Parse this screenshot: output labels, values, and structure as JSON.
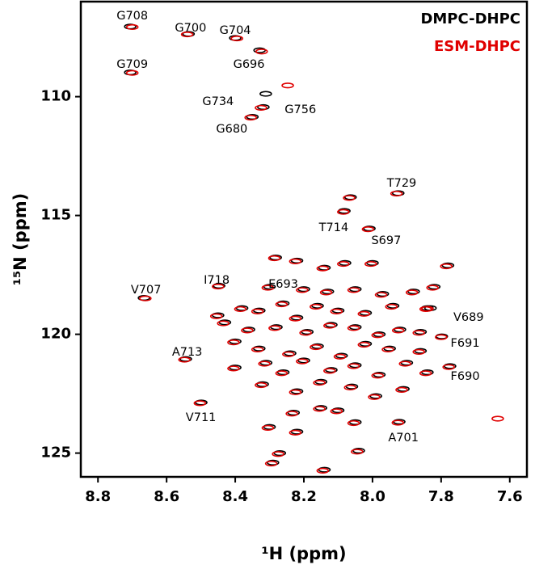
{
  "chart_data": {
    "type": "scatter",
    "xlabel": "¹H (ppm)",
    "ylabel": "¹⁵N (ppm)",
    "xlim": [
      8.85,
      7.55
    ],
    "ylim": [
      106,
      126
    ],
    "xticks": [
      8.8,
      8.6,
      8.4,
      8.2,
      {
        "value": 8,
        "label": "8.0"
      },
      7.8,
      7.6
    ],
    "yticks": [
      110,
      115,
      120,
      125
    ],
    "legend": "upper right",
    "series": [
      {
        "name": "DMPC-DHPC",
        "color": "#000000",
        "x": [
          8.706,
          8.536,
          8.4,
          8.329,
          8.706,
          8.311,
          8.318,
          8.35,
          7.925,
          8.064,
          8.082,
          8.009,
          8.666,
          8.447,
          8.282,
          8.544,
          8.499,
          7.922,
          7.774,
          7.798,
          7.831,
          8.22,
          8.14,
          8.08,
          8.0,
          7.78,
          8.3,
          8.2,
          8.13,
          8.05,
          7.97,
          7.88,
          7.82,
          8.45,
          8.38,
          8.33,
          8.26,
          8.22,
          8.16,
          8.1,
          8.02,
          7.94,
          7.84,
          8.43,
          8.36,
          8.28,
          8.19,
          8.12,
          8.05,
          7.98,
          7.92,
          7.86,
          8.4,
          8.33,
          8.24,
          8.16,
          8.09,
          8.02,
          7.95,
          7.86,
          8.4,
          8.31,
          8.26,
          8.2,
          8.12,
          8.05,
          7.98,
          7.9,
          7.84,
          8.32,
          8.22,
          8.15,
          8.06,
          7.99,
          7.91,
          8.23,
          8.15,
          8.05,
          8.1,
          8.3,
          8.22,
          8.04,
          8.27,
          8.29,
          8.14
        ],
        "values": [
          107.05,
          107.36,
          107.53,
          108.05,
          108.98,
          109.88,
          110.44,
          110.85,
          114.06,
          114.23,
          114.81,
          115.55,
          118.47,
          117.96,
          116.77,
          121.04,
          122.87,
          123.68,
          121.34,
          120.09,
          118.9,
          116.9,
          117.2,
          117.0,
          117.0,
          117.1,
          118.0,
          118.1,
          118.2,
          118.1,
          118.3,
          118.2,
          118.0,
          119.2,
          118.9,
          119.0,
          118.7,
          119.3,
          118.8,
          119.0,
          119.1,
          118.8,
          118.9,
          119.5,
          119.8,
          119.7,
          119.9,
          119.6,
          119.7,
          120.0,
          119.8,
          119.9,
          120.3,
          120.6,
          120.8,
          120.5,
          120.9,
          120.4,
          120.6,
          120.7,
          121.4,
          121.2,
          121.6,
          121.1,
          121.5,
          121.3,
          121.7,
          121.2,
          121.6,
          122.1,
          122.4,
          122.0,
          122.2,
          122.6,
          122.3,
          123.3,
          123.1,
          123.7,
          123.2,
          123.9,
          124.1,
          124.9,
          125.0,
          125.4,
          125.7
        ]
      },
      {
        "name": "ESM-DHPC",
        "color": "#e00000",
        "x": [
          8.7,
          8.54,
          8.395,
          8.323,
          8.7,
          8.247,
          8.325,
          8.355,
          7.93,
          8.068,
          8.085,
          8.013,
          8.662,
          8.45,
          8.286,
          8.548,
          8.503,
          7.926,
          7.778,
          7.8,
          7.84,
          8.225,
          8.145,
          8.085,
          8.005,
          7.785,
          8.305,
          8.205,
          8.135,
          8.055,
          7.975,
          7.885,
          7.825,
          8.455,
          8.385,
          8.335,
          8.265,
          8.225,
          8.165,
          8.105,
          8.025,
          7.945,
          7.845,
          8.435,
          8.365,
          8.285,
          8.195,
          8.125,
          8.055,
          7.985,
          7.925,
          7.865,
          8.405,
          8.335,
          8.245,
          8.165,
          8.095,
          8.025,
          7.955,
          7.865,
          8.405,
          8.315,
          8.265,
          8.205,
          8.125,
          8.055,
          7.985,
          7.905,
          7.845,
          8.325,
          8.225,
          8.155,
          8.065,
          7.995,
          7.915,
          8.235,
          8.155,
          8.055,
          8.105,
          8.305,
          8.225,
          8.045,
          8.275,
          8.295,
          8.145,
          7.635
        ],
        "values": [
          107.07,
          107.38,
          107.55,
          108.1,
          109.0,
          109.53,
          110.47,
          110.88,
          114.08,
          114.26,
          114.85,
          115.58,
          118.49,
          117.99,
          116.8,
          121.07,
          122.9,
          123.72,
          121.38,
          120.12,
          118.93,
          116.93,
          117.23,
          117.04,
          117.04,
          117.14,
          118.04,
          118.14,
          118.24,
          118.14,
          118.34,
          118.24,
          118.04,
          119.24,
          118.94,
          119.04,
          118.74,
          119.34,
          118.84,
          119.04,
          119.14,
          118.84,
          118.94,
          119.54,
          119.84,
          119.74,
          119.94,
          119.64,
          119.74,
          120.04,
          119.84,
          119.94,
          120.34,
          120.64,
          120.84,
          120.54,
          120.94,
          120.44,
          120.64,
          120.74,
          121.44,
          121.24,
          121.64,
          121.14,
          121.54,
          121.34,
          121.74,
          121.24,
          121.64,
          122.14,
          122.44,
          122.04,
          122.24,
          122.64,
          122.34,
          123.34,
          123.14,
          123.74,
          123.24,
          123.94,
          124.14,
          124.94,
          125.04,
          125.44,
          125.74,
          123.55
        ]
      }
    ],
    "annotations": [
      {
        "text": "G708",
        "x": 8.7,
        "y": 106.61
      },
      {
        "text": "G700",
        "x": 8.53,
        "y": 107.12
      },
      {
        "text": "G704",
        "x": 8.4,
        "y": 107.22
      },
      {
        "text": "G696",
        "x": 8.36,
        "y": 108.65
      },
      {
        "text": "G709",
        "x": 8.7,
        "y": 108.65
      },
      {
        "text": "G734",
        "x": 8.45,
        "y": 110.22
      },
      {
        "text": "G756",
        "x": 8.21,
        "y": 110.56
      },
      {
        "text": "G680",
        "x": 8.41,
        "y": 111.37
      },
      {
        "text": "T729",
        "x": 7.915,
        "y": 113.65
      },
      {
        "text": "T714",
        "x": 8.113,
        "y": 115.52
      },
      {
        "text": "S697",
        "x": 7.96,
        "y": 116.07
      },
      {
        "text": "I718",
        "x": 8.454,
        "y": 117.73
      },
      {
        "text": "E693",
        "x": 8.26,
        "y": 117.9
      },
      {
        "text": "V707",
        "x": 8.66,
        "y": 118.14
      },
      {
        "text": "V689",
        "x": 7.72,
        "y": 119.3
      },
      {
        "text": "F691",
        "x": 7.73,
        "y": 120.39
      },
      {
        "text": "A713",
        "x": 8.54,
        "y": 120.76
      },
      {
        "text": "F690",
        "x": 7.73,
        "y": 121.78
      },
      {
        "text": "V711",
        "x": 8.5,
        "y": 123.52
      },
      {
        "text": "A701",
        "x": 7.91,
        "y": 124.37
      }
    ]
  }
}
